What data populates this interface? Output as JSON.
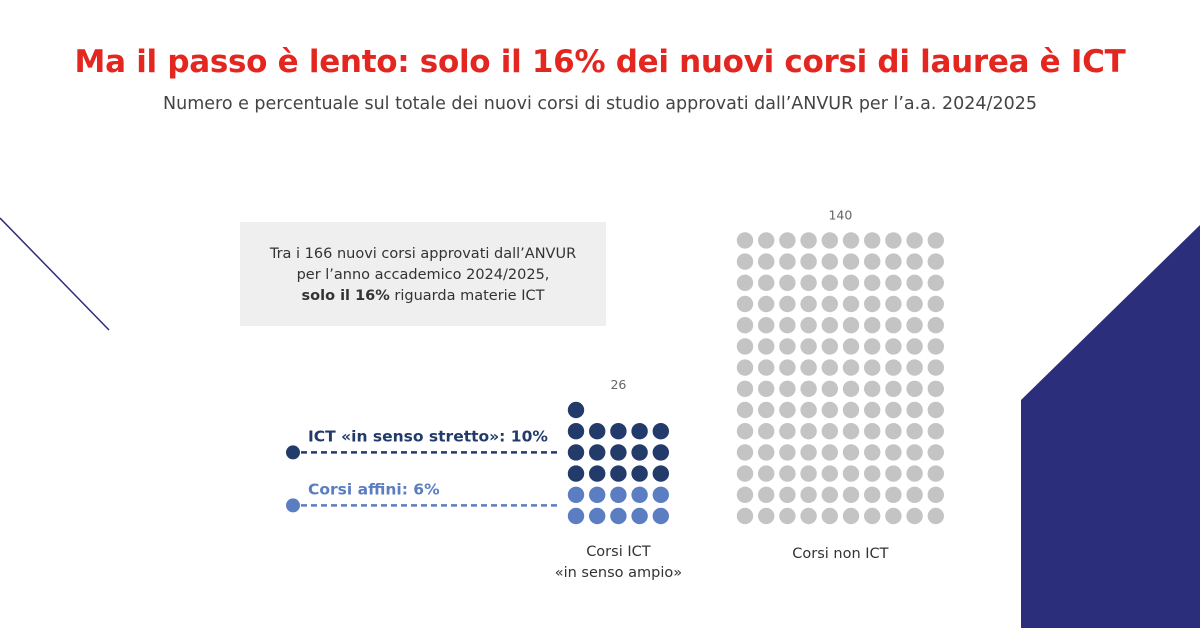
{
  "header": {
    "title": "Ma il passo è lento: solo il 16% dei nuovi corsi di laurea è ICT",
    "subtitle": "Numero e percentuale sul totale dei nuovi corsi di studio approvati dall’ANVUR per l’a.a. 2024/2025"
  },
  "callout": {
    "line1": "Tra i 166 nuovi corsi approvati dall’ANVUR",
    "line2": "per l’anno accademico 2024/2025,",
    "line3_bold": "solo il 16%",
    "line3_rest": " riguarda materie ICT"
  },
  "colors": {
    "title": "#e3261f",
    "ict_strict": "#233b6b",
    "ict_related": "#5b7dc1",
    "non_ict": "#c4c4c4",
    "decor_navy": "#2b2e7a",
    "callout_bg": "#efefef"
  },
  "chart_data": {
    "type": "waffle",
    "total": 166,
    "groups": [
      {
        "label": "Corsi ICT «in senso ampio»",
        "label_lines": [
          "Corsi ICT",
          "«in senso ampio»"
        ],
        "total_label": "26",
        "total": 26,
        "series": [
          {
            "name": "ICT «in senso stretto»",
            "value": 16,
            "percent": 10,
            "legend_text": "ICT «in senso stretto»: 10%"
          },
          {
            "name": "Corsi affini",
            "value": 10,
            "percent": 6,
            "legend_text": "Corsi affini: 6%"
          }
        ]
      },
      {
        "label": "Corsi non ICT",
        "label_lines": [
          "Corsi non ICT"
        ],
        "total_label": "140",
        "total": 140,
        "series": [
          {
            "name": "Corsi non ICT",
            "value": 140
          }
        ]
      }
    ]
  }
}
